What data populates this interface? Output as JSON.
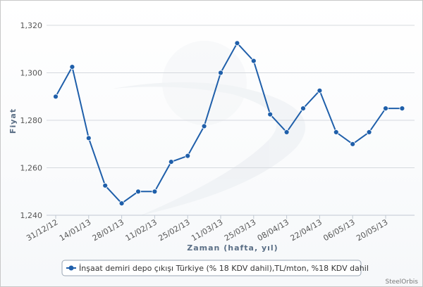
{
  "chart_data": {
    "type": "line",
    "title": "",
    "xlabel": "Zaman (hafta, yıl)",
    "ylabel": "Fiyat",
    "ylim": [
      1240,
      1320
    ],
    "yticks": [
      1240,
      1260,
      1280,
      1300,
      1320
    ],
    "ytick_labels": [
      "1,240",
      "1,260",
      "1,280",
      "1,300",
      "1,320"
    ],
    "xtick_labels": [
      "31/12/12",
      "14/01/13",
      "28/01/13",
      "11/02/13",
      "25/02/13",
      "11/03/13",
      "25/03/13",
      "08/04/13",
      "22/04/13",
      "06/05/13",
      "20/05/13"
    ],
    "xtick_every": 2,
    "grid": true,
    "legend_position": "bottom",
    "color": "#1f5faa",
    "series": [
      {
        "name": "İnşaat demiri depo çıkışı Türkiye (% 18 KDV dahil),TL/mton, %18 KDV dahil",
        "x": [
          "31/12/12",
          "07/01/13",
          "14/01/13",
          "21/01/13",
          "28/01/13",
          "04/02/13",
          "11/02/13",
          "18/02/13",
          "25/02/13",
          "04/03/13",
          "11/03/13",
          "18/03/13",
          "25/03/13",
          "01/04/13",
          "08/04/13",
          "15/04/13",
          "22/04/13",
          "29/04/13",
          "06/05/13",
          "13/05/13",
          "20/05/13",
          "27/05/13"
        ],
        "values": [
          1290,
          1302.5,
          1272.5,
          1252.5,
          1245,
          1250,
          1250,
          1262.5,
          1265,
          1277.5,
          1300,
          1312.5,
          1305,
          1282.5,
          1275,
          1285,
          1292.5,
          1275,
          1270,
          1275,
          1285,
          1285
        ]
      }
    ]
  },
  "credit": "SteelOrbis"
}
